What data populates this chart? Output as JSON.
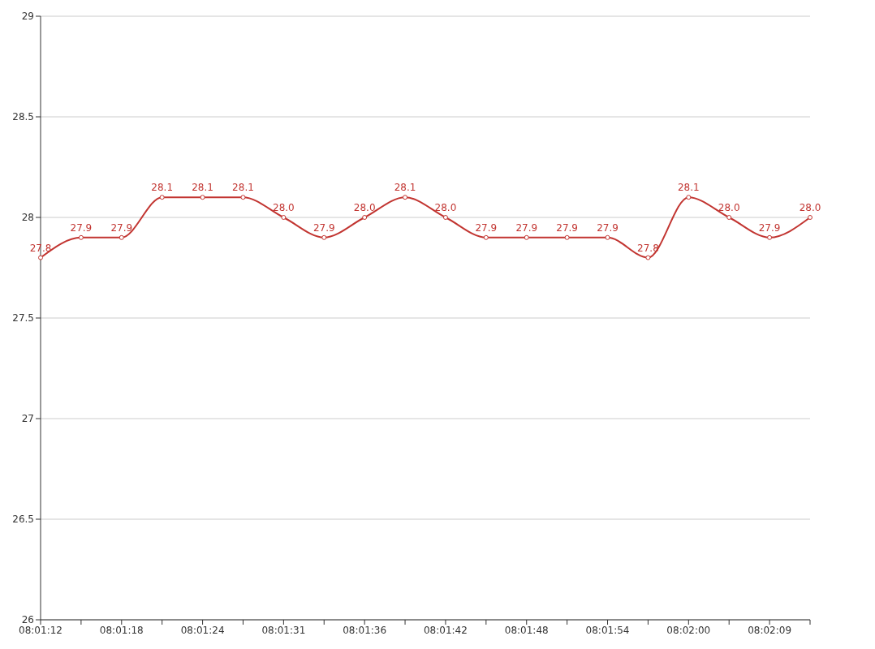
{
  "chart_data": {
    "type": "line",
    "categories": [
      "08:01:12",
      null,
      "08:01:18",
      null,
      "08:01:24",
      null,
      "08:01:31",
      null,
      "08:01:36",
      null,
      "08:01:42",
      null,
      "08:01:48",
      null,
      "08:01:54",
      null,
      "08:02:00",
      null,
      "08:02:09",
      null
    ],
    "series": [
      {
        "color": "#c23531",
        "values": [
          27.8,
          27.9,
          27.9,
          28.1,
          28.1,
          28.1,
          28.0,
          27.9,
          28.0,
          28.1,
          28.0,
          27.9,
          27.9,
          27.9,
          27.9,
          27.8,
          28.1,
          28.0,
          27.9,
          28.0
        ],
        "value_labels": [
          "27.8",
          "27.9",
          "27.9",
          "28.1",
          "28.1",
          "28.1",
          "28.0",
          "27.9",
          "28.0",
          "28.1",
          "28.0",
          "27.9",
          "27.9",
          "27.9",
          "27.9",
          "27.8",
          "28.1",
          "28.0",
          "27.9",
          "28.0"
        ]
      }
    ],
    "ylim": [
      26,
      29
    ],
    "yticks": [
      26,
      26.5,
      27,
      27.5,
      28,
      28.5,
      29
    ],
    "grid": "y",
    "marker": "circle",
    "line_style": "solid",
    "legend": false
  }
}
